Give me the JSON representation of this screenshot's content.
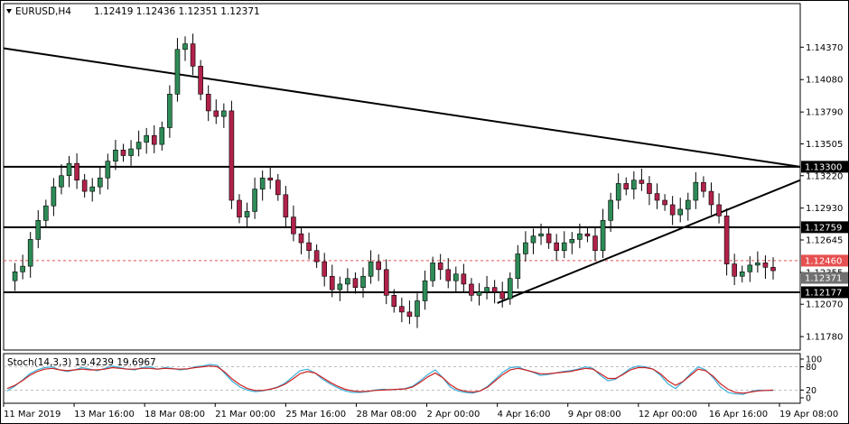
{
  "chart_data": [
    {
      "type": "candlestick",
      "symbol_label": "EURUSD,H4",
      "ohlc_label": "1.12419 1.12436 1.12351 1.12371",
      "y_ticks": [
        "1.14370",
        "1.14080",
        "1.13790",
        "1.13505",
        "1.13220",
        "1.12930",
        "1.12645",
        "1.12355",
        "1.12070",
        "1.11780"
      ],
      "x_ticks": [
        "11 Mar 2019",
        "13 Mar 16:00",
        "18 Mar 08:00",
        "21 Mar 00:00",
        "25 Mar 16:00",
        "28 Mar 08:00",
        "2 Apr 00:00",
        "4 Apr 16:00",
        "9 Apr 08:00",
        "12 Apr 00:00",
        "16 Apr 16:00",
        "19 Apr 08:00"
      ],
      "ylim": [
        1.1166,
        1.1476
      ],
      "horizontal_levels": [
        {
          "value": 1.133,
          "label": "1.13300",
          "style": "black"
        },
        {
          "value": 1.12759,
          "label": "1.12759",
          "style": "black"
        },
        {
          "value": 1.12177,
          "label": "1.12177",
          "style": "black"
        },
        {
          "value": 1.1246,
          "label": "1.12460",
          "style": "dashed-red"
        }
      ],
      "price_tag": "1.12371",
      "trendlines": [
        {
          "from": [
            "11 Mar 2019",
            1.1436
          ],
          "to": [
            "19 Apr 16:00",
            1.133
          ]
        },
        {
          "from": [
            "4 Apr 16:00",
            1.1208
          ],
          "to": [
            "19 Apr 16:00",
            1.1318
          ]
        }
      ],
      "colors": {
        "bull": "#2e8b57",
        "bear": "#b0224a",
        "level": "#000000",
        "dashed": "#e65050"
      },
      "path_points": [
        1.1228,
        1.1236,
        1.1241,
        1.1265,
        1.1282,
        1.1295,
        1.1312,
        1.1322,
        1.1333,
        1.1318,
        1.1308,
        1.1312,
        1.132,
        1.1335,
        1.1345,
        1.134,
        1.1346,
        1.1352,
        1.1358,
        1.135,
        1.1365,
        1.1395,
        1.1435,
        1.144,
        1.142,
        1.1395,
        1.138,
        1.1375,
        1.138,
        1.13,
        1.1285,
        1.129,
        1.131,
        1.132,
        1.1318,
        1.1305,
        1.1285,
        1.127,
        1.1262,
        1.1255,
        1.1245,
        1.1232,
        1.122,
        1.1225,
        1.123,
        1.1222,
        1.1232,
        1.1245,
        1.1238,
        1.1215,
        1.1205,
        1.12,
        1.1196,
        1.121,
        1.1228,
        1.1244,
        1.1238,
        1.1228,
        1.1234,
        1.1225,
        1.1215,
        1.1218,
        1.1222,
        1.1218,
        1.1212,
        1.123,
        1.1252,
        1.1262,
        1.1268,
        1.127,
        1.1262,
        1.1255,
        1.1262,
        1.1265,
        1.127,
        1.1268,
        1.1255,
        1.1282,
        1.13,
        1.1315,
        1.131,
        1.1318,
        1.1315,
        1.1306,
        1.13,
        1.1296,
        1.1287,
        1.1292,
        1.13,
        1.1316,
        1.1308,
        1.1296,
        1.1286,
        1.1243,
        1.1232,
        1.1236,
        1.1242,
        1.1244,
        1.124,
        1.1237
      ]
    },
    {
      "type": "line",
      "title": "Stoch(14,3,3) 19.4239 19.6967",
      "y_ticks": [
        "100",
        "80",
        "20",
        "0"
      ],
      "ylim": [
        0,
        100
      ],
      "series": [
        {
          "color": "#3aaed8",
          "values": [
            18,
            30,
            45,
            62,
            72,
            78,
            80,
            72,
            68,
            72,
            78,
            74,
            70,
            76,
            82,
            78,
            74,
            72,
            78,
            80,
            74,
            78,
            76,
            72,
            74,
            80,
            82,
            86,
            84,
            62,
            42,
            28,
            20,
            16,
            18,
            22,
            28,
            38,
            54,
            70,
            74,
            64,
            48,
            36,
            26,
            18,
            14,
            14,
            16,
            20,
            22,
            21,
            22,
            24,
            30,
            44,
            60,
            72,
            52,
            28,
            18,
            14,
            12,
            18,
            30,
            48,
            66,
            78,
            80,
            72,
            66,
            58,
            60,
            64,
            68,
            70,
            74,
            80,
            76,
            58,
            44,
            48,
            62,
            76,
            82,
            80,
            74,
            58,
            36,
            24,
            42,
            62,
            80,
            72,
            52,
            28,
            14,
            10,
            9,
            16,
            20,
            19,
            19
          ]
        },
        {
          "color": "#cc2020",
          "values": [
            24,
            32,
            44,
            58,
            68,
            74,
            76,
            72,
            70,
            72,
            74,
            72,
            72,
            74,
            78,
            76,
            74,
            74,
            76,
            76,
            74,
            76,
            75,
            74,
            75,
            78,
            80,
            82,
            80,
            66,
            48,
            34,
            24,
            19,
            19,
            22,
            27,
            35,
            48,
            62,
            68,
            64,
            52,
            40,
            30,
            22,
            18,
            16,
            17,
            19,
            20,
            21,
            22,
            23,
            28,
            40,
            54,
            64,
            52,
            34,
            22,
            17,
            15,
            18,
            28,
            44,
            60,
            72,
            76,
            72,
            67,
            62,
            62,
            64,
            66,
            68,
            72,
            76,
            74,
            62,
            50,
            50,
            60,
            72,
            78,
            78,
            74,
            62,
            44,
            32,
            42,
            58,
            74,
            70,
            56,
            36,
            22,
            14,
            12,
            15,
            18,
            19,
            20
          ]
        }
      ]
    }
  ]
}
